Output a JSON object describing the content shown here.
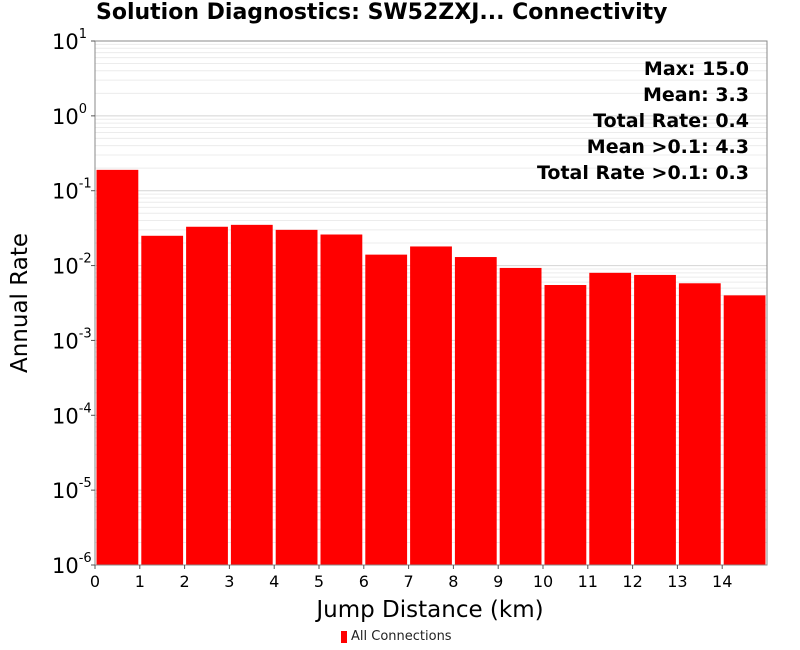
{
  "chart_data": {
    "type": "bar",
    "title": "Solution Diagnostics: SW52ZXJ... Connectivity",
    "xlabel": "Jump Distance (km)",
    "ylabel": "Annual Rate",
    "yscale": "log",
    "ylim": [
      1e-06,
      10
    ],
    "xlim": [
      0,
      15
    ],
    "bar_color": "#ff0000",
    "x_tick_labels": [
      "0",
      "1",
      "2",
      "3",
      "4",
      "5",
      "6",
      "7",
      "8",
      "9",
      "10",
      "11",
      "12",
      "13",
      "14"
    ],
    "y_tick_labels": [
      {
        "base": "10",
        "exp": "1"
      },
      {
        "base": "10",
        "exp": "0"
      },
      {
        "base": "10",
        "exp": "-1"
      },
      {
        "base": "10",
        "exp": "-2"
      },
      {
        "base": "10",
        "exp": "-3"
      },
      {
        "base": "10",
        "exp": "-4"
      },
      {
        "base": "10",
        "exp": "-5"
      },
      {
        "base": "10",
        "exp": "-6"
      }
    ],
    "bins": [
      {
        "x0": 0,
        "x1": 1,
        "value": 0.19
      },
      {
        "x0": 1,
        "x1": 2,
        "value": 0.025
      },
      {
        "x0": 2,
        "x1": 3,
        "value": 0.033
      },
      {
        "x0": 3,
        "x1": 4,
        "value": 0.035
      },
      {
        "x0": 4,
        "x1": 5,
        "value": 0.03
      },
      {
        "x0": 5,
        "x1": 6,
        "value": 0.026
      },
      {
        "x0": 6,
        "x1": 7,
        "value": 0.014
      },
      {
        "x0": 7,
        "x1": 8,
        "value": 0.018
      },
      {
        "x0": 8,
        "x1": 9,
        "value": 0.013
      },
      {
        "x0": 9,
        "x1": 10,
        "value": 0.0093
      },
      {
        "x0": 10,
        "x1": 11,
        "value": 0.0055
      },
      {
        "x0": 11,
        "x1": 12,
        "value": 0.008
      },
      {
        "x0": 12,
        "x1": 13,
        "value": 0.0075
      },
      {
        "x0": 13,
        "x1": 14,
        "value": 0.0058
      },
      {
        "x0": 14,
        "x1": 15,
        "value": 0.004
      }
    ],
    "annotations": [
      "Max: 15.0",
      "Mean: 3.3",
      "Total Rate: 0.4",
      "Mean >0.1: 4.3",
      "Total Rate >0.1: 0.3"
    ],
    "legend": [
      {
        "label": "All Connections",
        "color": "#ff0000"
      }
    ],
    "legend_position": "bottom-center",
    "grid": true
  }
}
